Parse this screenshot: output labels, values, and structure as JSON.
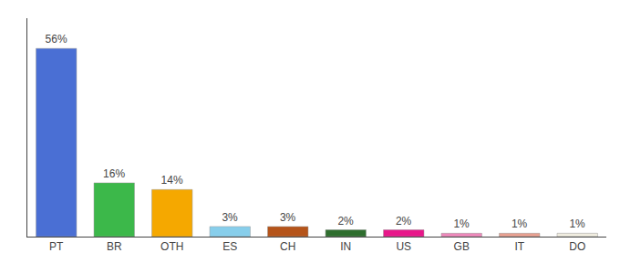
{
  "chart_data": {
    "type": "bar",
    "categories": [
      "PT",
      "BR",
      "OTH",
      "ES",
      "CH",
      "IN",
      "US",
      "GB",
      "IT",
      "DO"
    ],
    "values": [
      56,
      16,
      14,
      3,
      3,
      2,
      2,
      1,
      1,
      1
    ],
    "value_labels": [
      "56%",
      "16%",
      "14%",
      "3%",
      "3%",
      "2%",
      "2%",
      "1%",
      "1%",
      "1%"
    ],
    "colors": [
      "#4a6fd4",
      "#3cb84a",
      "#f5a800",
      "#87ceeb",
      "#b5541a",
      "#2e6e2e",
      "#e8178a",
      "#ee88bb",
      "#e8a090",
      "#f0ede0"
    ],
    "ylim": [
      0,
      65
    ],
    "grid": false,
    "data_labels": true,
    "tick_labels": "x"
  }
}
